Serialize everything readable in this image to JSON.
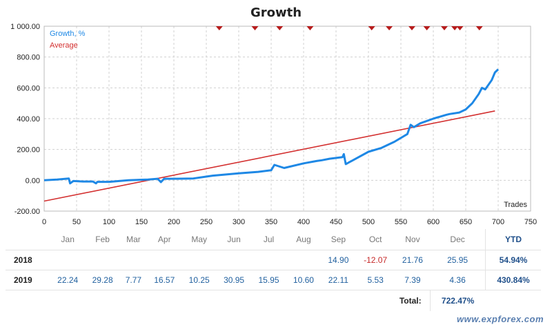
{
  "chart_data": {
    "type": "line",
    "title": "Growth",
    "xlabel": "Trades",
    "ylabel": "",
    "xlim": [
      0,
      750
    ],
    "ylim": [
      -200,
      1000
    ],
    "x_ticks": [
      0,
      50,
      100,
      150,
      200,
      250,
      300,
      350,
      400,
      450,
      500,
      550,
      600,
      650,
      700,
      750
    ],
    "y_ticks": [
      -200,
      0,
      200,
      400,
      600,
      800,
      1000
    ],
    "y_tick_labels": [
      "-200.00",
      "0.00",
      "200.00",
      "400.00",
      "600.00",
      "800.00",
      "1 000.00"
    ],
    "legend": [
      "Growth, %",
      "Average"
    ],
    "series": [
      {
        "name": "Growth, %",
        "color": "#1e88e5",
        "x": [
          0,
          20,
          38,
          40,
          45,
          60,
          75,
          80,
          82,
          100,
          130,
          160,
          175,
          180,
          185,
          200,
          230,
          260,
          300,
          330,
          350,
          355,
          370,
          400,
          420,
          428,
          440,
          460,
          462,
          465,
          500,
          520,
          540,
          560,
          565,
          570,
          580,
          600,
          620,
          625,
          640,
          650,
          660,
          670,
          675,
          680,
          690,
          695,
          700
        ],
        "y": [
          0,
          5,
          12,
          -20,
          -5,
          -8,
          -8,
          -20,
          -10,
          -10,
          0,
          5,
          10,
          -12,
          10,
          10,
          12,
          30,
          45,
          55,
          65,
          100,
          80,
          110,
          125,
          130,
          140,
          150,
          170,
          105,
          185,
          210,
          250,
          300,
          360,
          345,
          370,
          400,
          425,
          430,
          440,
          460,
          500,
          560,
          600,
          590,
          650,
          700,
          720
        ]
      },
      {
        "name": "Average",
        "color": "#d32f2f",
        "x": [
          0,
          695
        ],
        "y": [
          -135,
          450
        ]
      }
    ],
    "annotations": {
      "deposit_markers_x": [
        270,
        325,
        363,
        410,
        505,
        532,
        567,
        590,
        617,
        633,
        641,
        671
      ]
    }
  },
  "table": {
    "months": [
      "Jan",
      "Feb",
      "Mar",
      "Apr",
      "May",
      "Jun",
      "Jul",
      "Aug",
      "Sep",
      "Oct",
      "Nov",
      "Dec"
    ],
    "ytd_header": "YTD",
    "rows": [
      {
        "year": "2018",
        "values": [
          "",
          "",
          "",
          "",
          "",
          "",
          "",
          "",
          "14.90",
          "-12.07",
          "21.76",
          "25.95"
        ],
        "ytd": "54.94%"
      },
      {
        "year": "2019",
        "values": [
          "22.24",
          "29.28",
          "7.77",
          "16.57",
          "10.25",
          "30.95",
          "15.95",
          "10.60",
          "22.11",
          "5.53",
          "7.39",
          "4.36"
        ],
        "ytd": "430.84%"
      }
    ],
    "total_label": "Total:",
    "total_value": "722.47%"
  },
  "watermark": "www.expforex.com"
}
